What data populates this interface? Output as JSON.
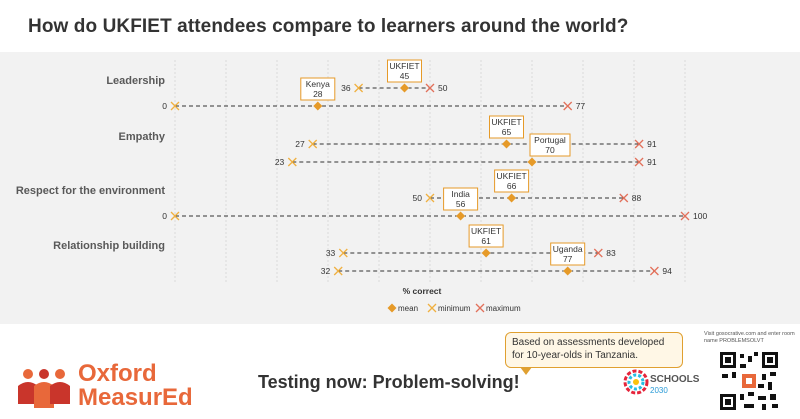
{
  "title": "How do UKFIET attendees compare to learners around the world?",
  "chart_data": {
    "type": "dumbbell",
    "title": "How do UKFIET attendees compare to learners around the world?",
    "xlabel": "% correct",
    "xlim": [
      0,
      100
    ],
    "groups": [
      {
        "name": "Leadership",
        "rows": [
          {
            "label": "UKFIET",
            "min": 36,
            "mean": 45,
            "max": 50
          },
          {
            "label": "Kenya",
            "min": 0,
            "mean": 28,
            "max": 77
          }
        ]
      },
      {
        "name": "Empathy",
        "rows": [
          {
            "label": "UKFIET",
            "min": 27,
            "mean": 65,
            "max": 91
          },
          {
            "label": "Portugal",
            "min": 23,
            "mean": 70,
            "max": 91
          }
        ]
      },
      {
        "name": "Respect for the environment",
        "rows": [
          {
            "label": "UKFIET",
            "min": 50,
            "mean": 66,
            "max": 88
          },
          {
            "label": "India",
            "min": 0,
            "mean": 56,
            "max": 100
          }
        ]
      },
      {
        "name": "Relationship building",
        "rows": [
          {
            "label": "UKFIET",
            "min": 33,
            "mean": 61,
            "max": 83
          },
          {
            "label": "Uganda",
            "min": 32,
            "mean": 77,
            "max": 94
          }
        ]
      }
    ],
    "legend": [
      "mean",
      "minimum",
      "maximum"
    ],
    "colors": {
      "mean": "#e69a28",
      "minimum": "#f0b040",
      "maximum": "#e2705a"
    }
  },
  "footer": {
    "logo_line1": "Oxford",
    "logo_line2": "MeasurEd",
    "testing": "Testing now: Problem-solving!",
    "bubble": "Based on assessments developed for 10-year-olds in Tanzania.",
    "schools": "SCHOOLS",
    "schools_year": "2030",
    "visit_text": "Visit gosocrative.com and enter room name PROBLEMSOLVT"
  }
}
